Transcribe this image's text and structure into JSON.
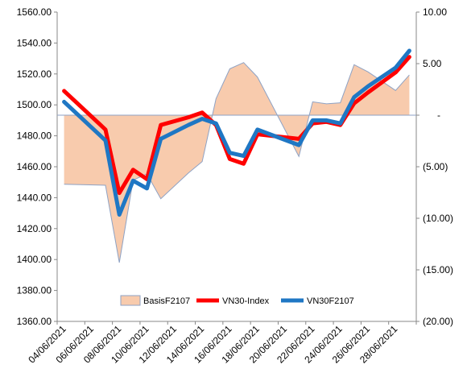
{
  "chart_data": {
    "type": "line",
    "x": [
      "04/06/2021",
      "05/06/2021",
      "06/06/2021",
      "07/06/2021",
      "08/06/2021",
      "09/06/2021",
      "10/06/2021",
      "11/06/2021",
      "12/06/2021",
      "13/06/2021",
      "14/06/2021",
      "15/06/2021",
      "16/06/2021",
      "17/06/2021",
      "18/06/2021",
      "19/06/2021",
      "20/06/2021",
      "21/06/2021",
      "22/06/2021",
      "23/06/2021",
      "24/06/2021",
      "25/06/2021",
      "26/06/2021",
      "27/06/2021",
      "28/06/2021",
      "29/06/2021"
    ],
    "x_tick_labels": [
      "04/06/2021",
      "06/06/2021",
      "08/06/2021",
      "10/06/2021",
      "12/06/2021",
      "14/06/2021",
      "16/06/2021",
      "18/06/2021",
      "20/06/2021",
      "22/06/2021",
      "24/06/2021",
      "26/06/2021",
      "28/06/2021"
    ],
    "y_left": {
      "ylim": [
        1360,
        1560
      ],
      "ticks": [
        1360,
        1380,
        1400,
        1420,
        1440,
        1460,
        1480,
        1500,
        1520,
        1540,
        1560
      ],
      "tick_labels": [
        "1360.00",
        "1380.00",
        "1400.00",
        "1420.00",
        "1440.00",
        "1460.00",
        "1480.00",
        "1500.00",
        "1520.00",
        "1540.00",
        "1560.00"
      ]
    },
    "y_right": {
      "ylim": [
        -20,
        10
      ],
      "ticks": [
        10,
        5,
        0,
        -5,
        -10,
        -15,
        -20
      ],
      "tick_labels": [
        "10.00",
        "5.00",
        "-",
        "(5.00)",
        "(10.00)",
        "(15.00)",
        "(20.00)"
      ]
    },
    "series": [
      {
        "name": "BasisF2107",
        "type": "area",
        "axis": "right",
        "color": "#f8cbad",
        "border": "#8ea2c4",
        "points": [
          {
            "x": "04/06/2021",
            "y": -6.7
          },
          {
            "x": "07/06/2021",
            "y": -6.8
          },
          {
            "x": "08/06/2021",
            "y": -14.3
          },
          {
            "x": "09/06/2021",
            "y": -6.3
          },
          {
            "x": "10/06/2021",
            "y": -5.7
          },
          {
            "x": "11/06/2021",
            "y": -8.1
          },
          {
            "x": "13/06/2021",
            "y": -5.6
          },
          {
            "x": "14/06/2021",
            "y": -4.5
          },
          {
            "x": "15/06/2021",
            "y": 1.6
          },
          {
            "x": "16/06/2021",
            "y": 4.5
          },
          {
            "x": "17/06/2021",
            "y": 5.1
          },
          {
            "x": "18/06/2021",
            "y": 3.7
          },
          {
            "x": "21/06/2021",
            "y": -4.0
          },
          {
            "x": "22/06/2021",
            "y": 1.3
          },
          {
            "x": "23/06/2021",
            "y": 1.1
          },
          {
            "x": "24/06/2021",
            "y": 1.2
          },
          {
            "x": "25/06/2021",
            "y": 4.9
          },
          {
            "x": "26/06/2021",
            "y": 4.2
          },
          {
            "x": "28/06/2021",
            "y": 2.4
          },
          {
            "x": "29/06/2021",
            "y": 3.9
          }
        ]
      },
      {
        "name": "VN30-Index",
        "type": "line",
        "axis": "left",
        "color": "#ff0000",
        "points": [
          {
            "x": "04/06/2021",
            "y": 1509
          },
          {
            "x": "07/06/2021",
            "y": 1484
          },
          {
            "x": "08/06/2021",
            "y": 1443
          },
          {
            "x": "09/06/2021",
            "y": 1458
          },
          {
            "x": "10/06/2021",
            "y": 1452
          },
          {
            "x": "11/06/2021",
            "y": 1487
          },
          {
            "x": "13/06/2021",
            "y": 1492
          },
          {
            "x": "14/06/2021",
            "y": 1495
          },
          {
            "x": "15/06/2021",
            "y": 1487
          },
          {
            "x": "16/06/2021",
            "y": 1465
          },
          {
            "x": "17/06/2021",
            "y": 1462
          },
          {
            "x": "18/06/2021",
            "y": 1481
          },
          {
            "x": "21/06/2021",
            "y": 1478
          },
          {
            "x": "22/06/2021",
            "y": 1488
          },
          {
            "x": "23/06/2021",
            "y": 1489
          },
          {
            "x": "24/06/2021",
            "y": 1487
          },
          {
            "x": "25/06/2021",
            "y": 1501
          },
          {
            "x": "26/06/2021",
            "y": 1508
          },
          {
            "x": "28/06/2021",
            "y": 1521
          },
          {
            "x": "29/06/2021",
            "y": 1531
          }
        ]
      },
      {
        "name": "VN30F2107",
        "type": "line",
        "axis": "left",
        "color": "#1f77c4",
        "points": [
          {
            "x": "04/06/2021",
            "y": 1502
          },
          {
            "x": "07/06/2021",
            "y": 1477
          },
          {
            "x": "08/06/2021",
            "y": 1429
          },
          {
            "x": "09/06/2021",
            "y": 1451
          },
          {
            "x": "10/06/2021",
            "y": 1446
          },
          {
            "x": "11/06/2021",
            "y": 1478
          },
          {
            "x": "13/06/2021",
            "y": 1487
          },
          {
            "x": "14/06/2021",
            "y": 1491
          },
          {
            "x": "15/06/2021",
            "y": 1488
          },
          {
            "x": "16/06/2021",
            "y": 1469
          },
          {
            "x": "17/06/2021",
            "y": 1467
          },
          {
            "x": "18/06/2021",
            "y": 1484
          },
          {
            "x": "21/06/2021",
            "y": 1474
          },
          {
            "x": "22/06/2021",
            "y": 1490
          },
          {
            "x": "23/06/2021",
            "y": 1490
          },
          {
            "x": "24/06/2021",
            "y": 1488
          },
          {
            "x": "25/06/2021",
            "y": 1505
          },
          {
            "x": "26/06/2021",
            "y": 1512
          },
          {
            "x": "28/06/2021",
            "y": 1524
          },
          {
            "x": "29/06/2021",
            "y": 1535
          }
        ]
      }
    ],
    "grid": false,
    "legend_position": "bottom-center"
  }
}
